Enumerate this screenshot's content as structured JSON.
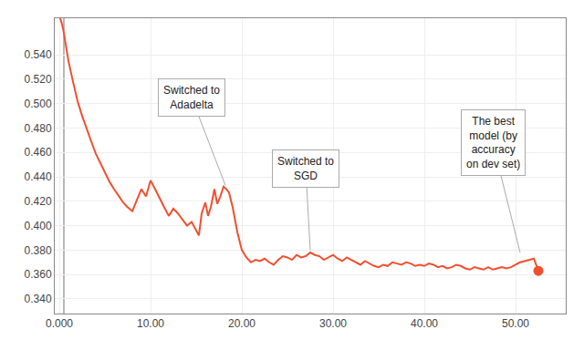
{
  "chart_data": {
    "type": "line",
    "color": "#F05030",
    "grid": true,
    "xlim": [
      -0.5,
      55.5
    ],
    "ylim": [
      0.328,
      0.57
    ],
    "xticks": [
      {
        "value": 0.0,
        "label": "0.000"
      },
      {
        "value": 10.0,
        "label": "10.00"
      },
      {
        "value": 20.0,
        "label": "20.00"
      },
      {
        "value": 30.0,
        "label": "30.00"
      },
      {
        "value": 40.0,
        "label": "40.00"
      },
      {
        "value": 50.0,
        "label": "50.00"
      }
    ],
    "yticks": [
      {
        "value": 0.34,
        "label": "0.340"
      },
      {
        "value": 0.36,
        "label": "0.360"
      },
      {
        "value": 0.38,
        "label": "0.380"
      },
      {
        "value": 0.4,
        "label": "0.400"
      },
      {
        "value": 0.42,
        "label": "0.420"
      },
      {
        "value": 0.44,
        "label": "0.440"
      },
      {
        "value": 0.46,
        "label": "0.460"
      },
      {
        "value": 0.48,
        "label": "0.480"
      },
      {
        "value": 0.5,
        "label": "0.500"
      },
      {
        "value": 0.52,
        "label": "0.520"
      },
      {
        "value": 0.54,
        "label": "0.540"
      }
    ],
    "vline": {
      "x": 0.5,
      "color": "#888888"
    },
    "point": {
      "x": 52.5,
      "y": 0.363
    },
    "annotations": [
      {
        "text": "Switched to\nAdadelta",
        "x": 18.2,
        "y": 0.433,
        "text_x": 14.5,
        "text_y": 0.505
      },
      {
        "text": "Switched to\nSGD",
        "x": 27.5,
        "y": 0.38,
        "text_x": 27.0,
        "text_y": 0.447
      },
      {
        "text": "The best\nmodel (by\naccuracy\non dev set)",
        "x": 50.5,
        "y": 0.378,
        "text_x": 47.5,
        "text_y": 0.468
      }
    ],
    "x": [
      0.1,
      0.3,
      0.5,
      0.7,
      1.0,
      1.5,
      2.0,
      2.5,
      3.0,
      3.5,
      4.0,
      4.5,
      5.0,
      5.5,
      6.0,
      6.5,
      7.0,
      7.5,
      8.0,
      8.5,
      9.0,
      9.5,
      10.0,
      10.5,
      11.0,
      11.5,
      12.0,
      12.5,
      13.0,
      13.5,
      14.0,
      14.5,
      15.0,
      15.3,
      15.6,
      16.0,
      16.3,
      16.6,
      17.0,
      17.3,
      17.6,
      18.0,
      18.3,
      18.6,
      19.0,
      19.5,
      20.0,
      20.5,
      21.0,
      21.5,
      22.0,
      22.5,
      23.0,
      23.5,
      24.0,
      24.5,
      25.0,
      25.5,
      26.0,
      26.5,
      27.0,
      27.5,
      28.0,
      28.5,
      29.0,
      29.5,
      30.0,
      30.5,
      31.0,
      31.5,
      32.0,
      32.5,
      33.0,
      33.5,
      34.0,
      34.5,
      35.0,
      35.5,
      36.0,
      36.5,
      37.0,
      37.5,
      38.0,
      38.5,
      39.0,
      39.5,
      40.0,
      40.5,
      41.0,
      41.5,
      42.0,
      42.5,
      43.0,
      43.5,
      44.0,
      44.5,
      45.0,
      45.5,
      46.0,
      46.5,
      47.0,
      47.5,
      48.0,
      48.5,
      49.0,
      49.5,
      50.0,
      50.5,
      51.0,
      51.5,
      52.0,
      52.5
    ],
    "values": [
      0.57,
      0.565,
      0.558,
      0.548,
      0.535,
      0.518,
      0.502,
      0.49,
      0.479,
      0.469,
      0.459,
      0.451,
      0.443,
      0.436,
      0.43,
      0.424,
      0.419,
      0.415,
      0.412,
      0.421,
      0.43,
      0.424,
      0.437,
      0.43,
      0.422,
      0.415,
      0.408,
      0.414,
      0.41,
      0.405,
      0.4,
      0.403,
      0.396,
      0.392,
      0.41,
      0.419,
      0.408,
      0.415,
      0.43,
      0.418,
      0.423,
      0.432,
      0.43,
      0.427,
      0.415,
      0.395,
      0.38,
      0.374,
      0.37,
      0.372,
      0.371,
      0.373,
      0.37,
      0.368,
      0.372,
      0.375,
      0.374,
      0.372,
      0.376,
      0.374,
      0.375,
      0.378,
      0.376,
      0.375,
      0.372,
      0.374,
      0.376,
      0.373,
      0.371,
      0.374,
      0.372,
      0.37,
      0.368,
      0.371,
      0.369,
      0.367,
      0.366,
      0.368,
      0.367,
      0.37,
      0.369,
      0.368,
      0.37,
      0.369,
      0.367,
      0.368,
      0.367,
      0.369,
      0.368,
      0.366,
      0.367,
      0.365,
      0.366,
      0.368,
      0.367,
      0.365,
      0.364,
      0.366,
      0.365,
      0.364,
      0.366,
      0.364,
      0.365,
      0.366,
      0.365,
      0.366,
      0.368,
      0.37,
      0.371,
      0.372,
      0.373,
      0.363
    ]
  }
}
